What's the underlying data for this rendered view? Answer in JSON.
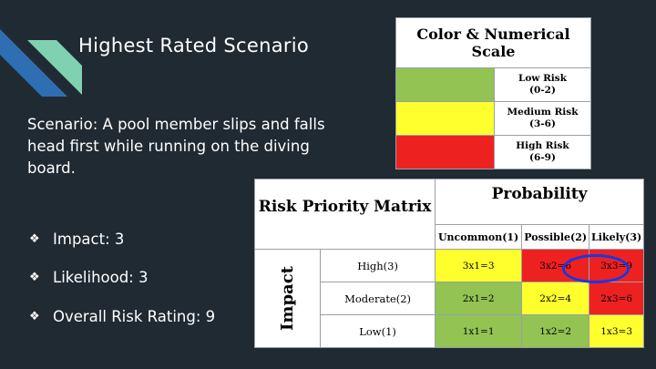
{
  "slide": {
    "title": "Highest Rated Scenario",
    "scenario": "Scenario: A pool member slips and falls head first while running on the diving board.",
    "bullets": [
      {
        "icon": "diamond-bullet-icon",
        "text": "Impact: 3"
      },
      {
        "icon": "diamond-bullet-icon",
        "text": "Likelihood: 3"
      },
      {
        "icon": "diamond-bullet-icon",
        "text": "Overall Risk Rating: 9"
      }
    ]
  },
  "scale": {
    "header": "Color & Numerical Scale",
    "rows": [
      {
        "label": "Low Risk",
        "range": "(0-2)",
        "color": "#92c353"
      },
      {
        "label": "Medium Risk",
        "range": "(3-6)",
        "color": "#ffff2e"
      },
      {
        "label": "High Risk",
        "range": "(6-9)",
        "color": "#ee2121"
      }
    ]
  },
  "matrix": {
    "title": "Risk Priority Matrix",
    "probability_label": "Probability",
    "impact_label": "Impact",
    "columns": [
      "Uncommon(1)",
      "Possible(2)",
      "Likely(3)"
    ],
    "rows": [
      {
        "label": "High(3)",
        "cells": [
          {
            "text": "3x1=3",
            "color": "#ffff2e"
          },
          {
            "text": "3x2=6",
            "color": "#ee2121"
          },
          {
            "text": "3x3=9",
            "color": "#ee2121"
          }
        ]
      },
      {
        "label": "Moderate(2)",
        "cells": [
          {
            "text": "2x1=2",
            "color": "#92c353"
          },
          {
            "text": "2x2=4",
            "color": "#ffff2e"
          },
          {
            "text": "2x3=6",
            "color": "#ee2121"
          }
        ]
      },
      {
        "label": "Low(1)",
        "cells": [
          {
            "text": "1x1=1",
            "color": "#92c353"
          },
          {
            "text": "1x2=2",
            "color": "#92c353"
          },
          {
            "text": "1x3=3",
            "color": "#ffff2e"
          }
        ]
      }
    ]
  },
  "colors": {
    "background": "#1f2a33",
    "stripe_blue": "#2d6fb2",
    "stripe_teal": "#7fd1b2",
    "highlight_circle": "#1538e6"
  }
}
